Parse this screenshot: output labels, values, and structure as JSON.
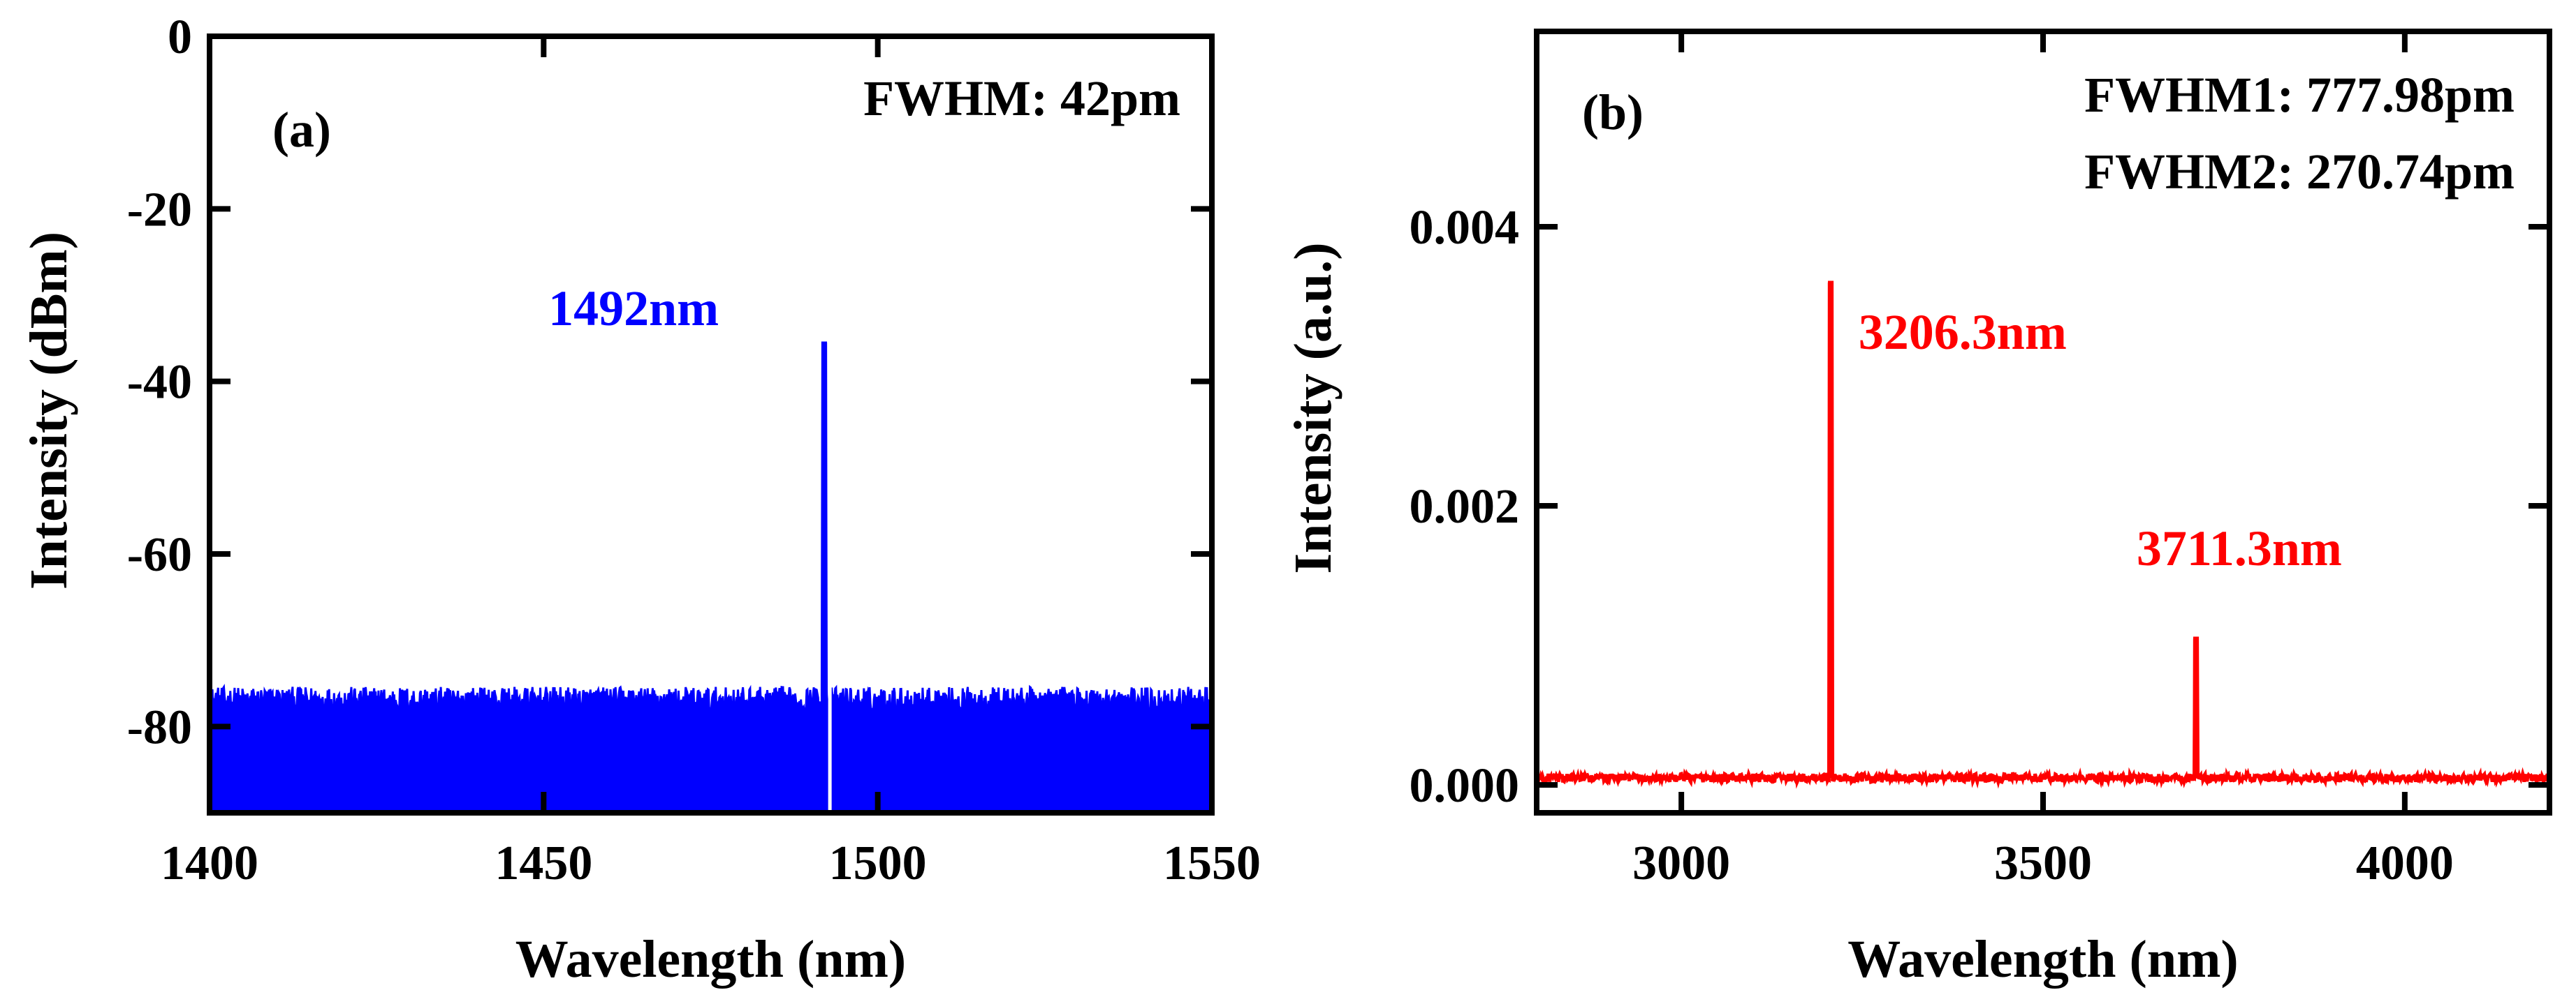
{
  "chart_data": [
    {
      "type": "line",
      "panel_label": "(a)",
      "xlabel": "Wavelength (nm)",
      "ylabel": "Intensity (dBm)",
      "xlim": [
        1400,
        1550
      ],
      "ylim": [
        -90,
        0
      ],
      "xticks": [
        1400,
        1450,
        1500,
        1550
      ],
      "yticks": [
        0,
        -20,
        -40,
        -60,
        -80
      ],
      "xtick_labels": [
        "1400",
        "1450",
        "1500",
        "1550"
      ],
      "ytick_labels": [
        "0",
        "-20",
        "-40",
        "-60",
        "-80"
      ],
      "fill_to_bottom": true,
      "color": "#0000FF",
      "noise_floor": -77,
      "noise_jitter": 1.6,
      "peaks": [
        {
          "x": 1492,
          "y": -35.5,
          "label": "1492nm"
        }
      ],
      "fwhm_text": "FWHM: 42pm",
      "grid": false
    },
    {
      "type": "line",
      "panel_label": "(b)",
      "xlabel": "Wavelength (nm)",
      "ylabel": "Intensity (a.u.)",
      "xlim": [
        2800,
        4200
      ],
      "ylim": [
        -0.0002,
        0.0054
      ],
      "xticks": [
        3000,
        3500,
        4000
      ],
      "yticks": [
        0.0,
        0.002,
        0.004
      ],
      "xtick_labels": [
        "3000",
        "3500",
        "4000"
      ],
      "ytick_labels": [
        "0.000",
        "0.002",
        "0.004"
      ],
      "fill_to_bottom": false,
      "color": "#FF0000",
      "noise_floor": 5e-05,
      "noise_jitter": 3e-05,
      "peaks": [
        {
          "x": 3206.3,
          "y": 0.0036,
          "label": "3206.3nm"
        },
        {
          "x": 3711.3,
          "y": 0.00105,
          "label": "3711.3nm"
        }
      ],
      "fwhm_texts": [
        "FWHM1: 777.98pm",
        "FWHM2: 270.74pm"
      ],
      "grid": false
    }
  ]
}
